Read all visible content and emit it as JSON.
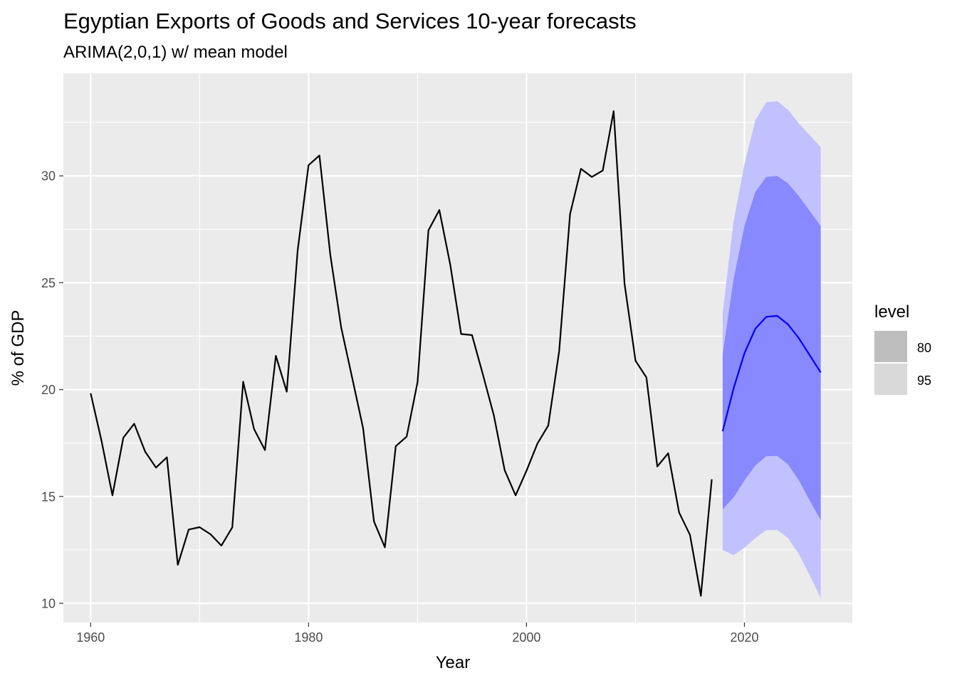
{
  "chart_data": {
    "type": "line",
    "title": "Egyptian Exports of Goods and Services 10-year forecasts",
    "subtitle": "ARIMA(2,0,1) w/ mean model",
    "xlabel": "Year",
    "ylabel": "% of GDP",
    "xlim": [
      1957.5,
      2029.9
    ],
    "ylim": [
      9.1,
      34.8
    ],
    "x_ticks": [
      1960,
      1980,
      2000,
      2020
    ],
    "y_ticks": [
      10,
      15,
      20,
      25,
      30
    ],
    "grid": true,
    "legend": {
      "title": "level",
      "position": "right",
      "entries": [
        {
          "label": "80",
          "color": "#bebebe"
        },
        {
          "label": "95",
          "color": "#d9d9d9"
        }
      ]
    },
    "series": [
      {
        "color": "#000000",
        "x": [
          1960,
          1961,
          1962,
          1963,
          1964,
          1965,
          1966,
          1967,
          1968,
          1969,
          1970,
          1971,
          1972,
          1973,
          1974,
          1975,
          1976,
          1977,
          1978,
          1979,
          1980,
          1981,
          1982,
          1983,
          1984,
          1985,
          1986,
          1987,
          1988,
          1989,
          1990,
          1991,
          1992,
          1993,
          1994,
          1995,
          1996,
          1997,
          1998,
          1999,
          2000,
          2001,
          2002,
          2003,
          2004,
          2005,
          2006,
          2007,
          2008,
          2009,
          2010,
          2011,
          2012,
          2013,
          2014,
          2015,
          2016,
          2017
        ],
        "values": [
          19.83,
          17.6,
          15.05,
          17.75,
          18.4,
          17.1,
          16.35,
          16.83,
          11.8,
          13.45,
          13.56,
          13.23,
          12.7,
          13.55,
          20.37,
          18.15,
          17.17,
          21.58,
          19.9,
          26.5,
          30.5,
          30.95,
          26.3,
          22.9,
          20.55,
          18.2,
          13.83,
          12.62,
          17.35,
          17.8,
          20.35,
          27.45,
          28.4,
          25.85,
          22.6,
          22.55,
          20.7,
          18.8,
          16.22,
          15.05,
          16.2,
          17.47,
          18.32,
          21.8,
          28.22,
          30.33,
          29.95,
          30.25,
          33.03,
          24.95,
          21.35,
          20.57,
          16.4,
          17.02,
          14.25,
          13.2,
          10.35,
          15.8
        ]
      },
      {
        "color": "#0000ff",
        "x": [
          2018,
          2019,
          2020,
          2021,
          2022,
          2023,
          2024,
          2025,
          2026,
          2027
        ],
        "values": [
          18.05,
          20.05,
          21.7,
          22.85,
          23.4,
          23.45,
          23.05,
          22.4,
          21.6,
          20.8
        ]
      }
    ],
    "bands": [
      {
        "level": "95",
        "color": "#c1c1ff",
        "x": [
          2018,
          2019,
          2020,
          2021,
          2022,
          2023,
          2024,
          2025,
          2026,
          2027
        ],
        "lower": [
          12.5,
          12.25,
          12.6,
          13.05,
          13.42,
          13.43,
          13.05,
          12.3,
          11.3,
          10.25
        ],
        "upper": [
          23.6,
          27.85,
          30.55,
          32.6,
          33.45,
          33.5,
          33.1,
          32.45,
          31.9,
          31.35
        ]
      },
      {
        "level": "80",
        "color": "#8888ff",
        "x": [
          2018,
          2019,
          2020,
          2021,
          2022,
          2023,
          2024,
          2025,
          2026,
          2027
        ],
        "lower": [
          14.4,
          14.95,
          15.75,
          16.45,
          16.88,
          16.9,
          16.5,
          15.75,
          14.8,
          13.9
        ],
        "upper": [
          21.65,
          25.15,
          27.65,
          29.25,
          29.95,
          30.0,
          29.65,
          29.05,
          28.35,
          27.65
        ]
      }
    ]
  }
}
